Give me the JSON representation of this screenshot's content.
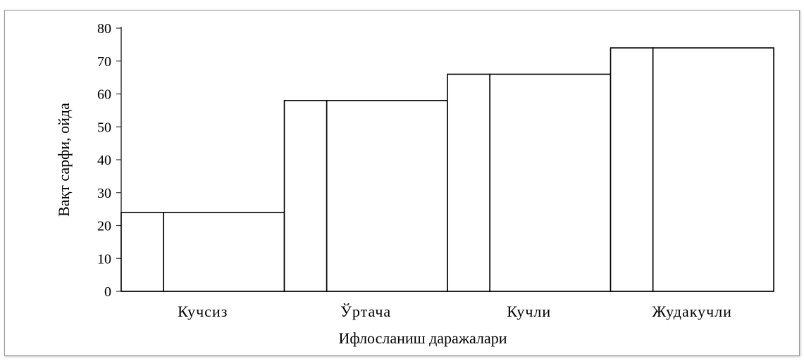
{
  "chart_data": {
    "type": "bar",
    "categories": [
      "Кучсиз",
      "Ўртача",
      "Кучли",
      "Жудакучли"
    ],
    "series": [
      {
        "values": [
          24,
          58,
          66,
          74
        ]
      }
    ],
    "title": "",
    "xlabel": "Ифлосланиш даражалари",
    "ylabel": "Вақт сарфи, ойда",
    "ylim": [
      0,
      80
    ],
    "yticks": [
      0,
      10,
      20,
      30,
      40,
      50,
      60,
      70,
      80
    ],
    "grid": false,
    "legend": "none",
    "colors": {
      "fill": "#ffffff",
      "stroke": "#000000",
      "axis": "#333333"
    }
  }
}
